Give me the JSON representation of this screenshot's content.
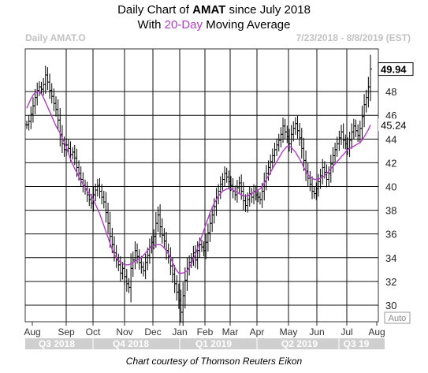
{
  "title": {
    "prefix": "Daily Chart of ",
    "ticker": "AMAT",
    "suffix": " since July 2018",
    "line2_prefix": "With ",
    "line2_ma": "20-Day",
    "line2_suffix": " Moving Average"
  },
  "header": {
    "symbol_label": "Daily AMAT.O",
    "date_range": "7/23/2018 - 8/8/2019 (EST)"
  },
  "auto_button": "Auto",
  "caption": "Chart courtesy of Thomson Reuters Eikon",
  "colors": {
    "price": "#000000",
    "moving_average": "#b23cc8",
    "grid": "#111111",
    "quarter_bar": "#cfcfcf",
    "last_tag": "#ffffff"
  },
  "chart_data": {
    "type": "line",
    "subtype": "ohlc",
    "y_range": [
      28.6,
      51.6
    ],
    "y_ticks": [
      30,
      32,
      34,
      36,
      38,
      40,
      42,
      44,
      46,
      48
    ],
    "y_tick_labels": [
      "30",
      "32",
      "34",
      "36",
      "38",
      "40",
      "42",
      "44",
      "46",
      "48"
    ],
    "grid": true,
    "last_price_label": "49.94",
    "last_ma_label": "45.24",
    "month_labels": [
      "Aug",
      "Sep",
      "Oct",
      "Nov",
      "Dec",
      "Jan",
      "Feb",
      "Mar",
      "Apr",
      "May",
      "Jun",
      "Jul",
      "Aug"
    ],
    "quarter_labels": [
      "Q3 2018",
      "Q4 2018",
      "Q1 2019",
      "Q2 2019",
      "Q3 19"
    ],
    "series": [
      {
        "values": [
          45.2,
          45.5,
          46.1,
          46.8,
          47.5,
          48.1,
          48.4,
          48.2,
          48.6,
          49.4,
          48.8,
          48.1,
          47.6,
          47.0,
          46.5,
          45.6,
          44.4,
          43.6,
          43.1,
          43.5,
          43.2,
          42.7,
          42.9,
          42.4,
          41.6,
          41.1,
          40.6,
          40.1,
          39.8,
          39.3,
          38.9,
          38.6,
          39.3,
          39.7,
          40.1,
          39.6,
          39.1,
          38.7,
          37.8,
          36.9,
          35.8,
          35.1,
          34.4,
          33.8,
          33.4,
          32.7,
          33.1,
          32.4,
          31.8,
          31.5,
          33.1,
          33.8,
          34.6,
          34.1,
          33.6,
          33.2,
          32.9,
          33.6,
          34.2,
          34.9,
          35.3,
          35.8,
          36.9,
          37.6,
          36.6,
          35.9,
          35.4,
          34.6,
          34.1,
          33.3,
          32.6,
          31.8,
          31.1,
          30.4,
          29.4,
          30.8,
          32.1,
          33.1,
          33.6,
          33.9,
          34.4,
          33.8,
          34.6,
          35.1,
          34.9,
          34.6,
          35.3,
          36.1,
          36.9,
          37.6,
          38.3,
          39.1,
          39.6,
          40.2,
          40.6,
          41.1,
          40.8,
          40.4,
          40.1,
          39.6,
          39.3,
          39.9,
          40.3,
          39.6,
          38.8,
          38.4,
          38.9,
          39.4,
          39.1,
          39.6,
          39.3,
          39.1,
          38.9,
          39.6,
          40.4,
          41.1,
          41.6,
          42.1,
          42.6,
          43.1,
          43.5,
          43.9,
          44.4,
          45.1,
          44.6,
          44.2,
          43.6,
          44.4,
          44.9,
          45.3,
          44.7,
          44.1,
          43.2,
          42.2,
          41.3,
          40.7,
          40.2,
          39.6,
          39.4,
          39.8,
          40.4,
          40.9,
          41.6,
          41.2,
          40.6,
          41.1,
          41.9,
          42.6,
          43.1,
          43.6,
          44.1,
          44.6,
          43.9,
          43.6,
          43.2,
          43.9,
          44.6,
          45.1,
          44.7,
          44.3,
          44.9,
          45.9,
          46.9,
          47.5,
          48.4,
          49.9
        ]
      },
      {
        "name": "20-Day",
        "values": [
          46.6,
          47.0,
          47.4,
          47.7,
          47.9,
          48.0,
          48.0,
          47.8,
          47.5,
          47.1,
          46.7,
          46.3,
          45.9,
          45.5,
          45.1,
          44.8,
          44.5,
          44.1,
          43.7,
          43.3,
          42.8,
          42.3,
          41.9,
          41.5,
          41.2,
          40.8,
          40.5,
          40.2,
          39.9,
          39.6,
          39.4,
          39.2,
          38.9,
          38.5,
          38.1,
          37.7,
          37.2,
          36.7,
          36.2,
          35.7,
          35.2,
          34.7,
          34.3,
          34.0,
          33.8,
          33.6,
          33.5,
          33.4,
          33.4,
          33.4,
          33.5,
          33.6,
          33.7,
          33.8,
          33.9,
          34.0,
          34.2,
          34.4,
          34.6,
          34.8,
          34.9,
          35.0,
          35.1,
          35.1,
          35.1,
          35.0,
          34.8,
          34.6,
          34.3,
          34.0,
          33.6,
          33.2,
          32.9,
          32.7,
          32.7,
          32.7,
          32.8,
          32.9,
          33.2,
          33.5,
          33.9,
          34.3,
          34.8,
          35.3,
          35.8,
          36.3,
          36.8,
          37.3,
          37.8,
          38.2,
          38.6,
          38.9,
          39.2,
          39.4,
          39.6,
          39.7,
          39.8,
          39.8,
          39.8,
          39.7,
          39.6,
          39.5,
          39.4,
          39.3,
          39.2,
          39.2,
          39.2,
          39.3,
          39.4,
          39.5,
          39.6,
          39.7,
          39.8,
          40.0,
          40.3,
          40.6,
          40.9,
          41.2,
          41.5,
          41.8,
          42.1,
          42.4,
          42.7,
          43.0,
          43.2,
          43.4,
          43.4,
          43.3,
          43.1,
          42.9,
          42.6,
          42.3,
          42.0,
          41.6,
          41.3,
          41.0,
          40.8,
          40.7,
          40.6,
          40.6,
          40.6,
          40.7,
          40.8,
          40.9,
          41.1,
          41.3,
          41.5,
          41.7,
          41.9,
          42.1,
          42.3,
          42.5,
          42.7,
          42.9,
          43.1,
          43.2,
          43.3,
          43.4,
          43.5,
          43.6,
          43.7,
          43.9,
          44.2,
          44.5,
          44.8,
          45.2
        ]
      }
    ]
  }
}
